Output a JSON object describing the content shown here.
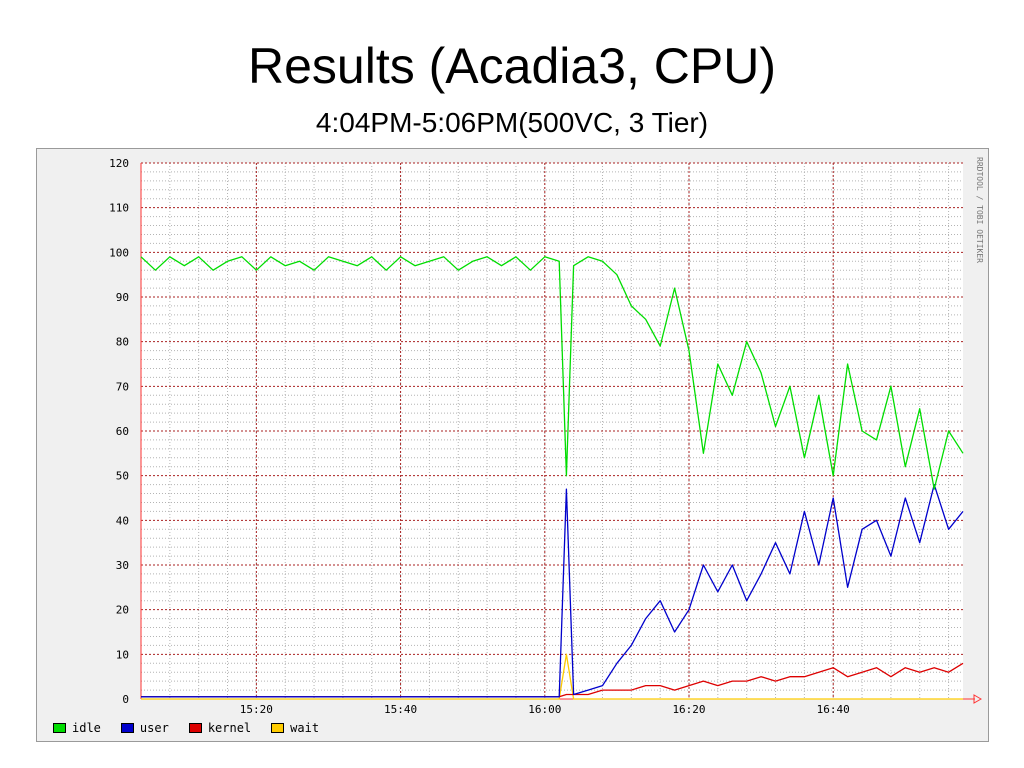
{
  "slide": {
    "title": "Results (Acadia3, CPU)",
    "subtitle": "4:04PM-5:06PM(500VC, 3 Tier)"
  },
  "watermark": "RRDTOOL / TOBI OETIKER",
  "colors": {
    "idle": "#00dd00",
    "user": "#0000cc",
    "kernel": "#dd0000",
    "wait": "#ffcc00",
    "major_grid": "#aa2222",
    "minor_grid": "#b4b4b4",
    "background": "#f0f0f0"
  },
  "chart_data": {
    "type": "line",
    "title": "",
    "xlabel": "",
    "ylabel": "",
    "x": [
      "15:04",
      "15:06",
      "15:08",
      "15:10",
      "15:12",
      "15:14",
      "15:16",
      "15:18",
      "15:20",
      "15:22",
      "15:24",
      "15:26",
      "15:28",
      "15:30",
      "15:32",
      "15:34",
      "15:36",
      "15:38",
      "15:40",
      "15:42",
      "15:44",
      "15:46",
      "15:48",
      "15:50",
      "15:52",
      "15:54",
      "15:56",
      "15:58",
      "16:00",
      "16:02",
      "16:03",
      "16:04",
      "16:06",
      "16:08",
      "16:10",
      "16:12",
      "16:14",
      "16:16",
      "16:18",
      "16:20",
      "16:22",
      "16:24",
      "16:26",
      "16:28",
      "16:30",
      "16:32",
      "16:34",
      "16:36",
      "16:38",
      "16:40",
      "16:42",
      "16:44",
      "16:46",
      "16:48",
      "16:50",
      "16:52",
      "16:54",
      "16:56",
      "16:58"
    ],
    "x_ticks": [
      "15:20",
      "15:40",
      "16:00",
      "16:20",
      "16:40"
    ],
    "ylim": [
      0,
      120
    ],
    "y_ticks": [
      0,
      10,
      20,
      30,
      40,
      50,
      60,
      70,
      80,
      90,
      100,
      110,
      120
    ],
    "grid": true,
    "legend_position": "bottom-left",
    "series": [
      {
        "name": "idle",
        "values": [
          99,
          96,
          99,
          97,
          99,
          96,
          98,
          99,
          96,
          99,
          97,
          98,
          96,
          99,
          98,
          97,
          99,
          96,
          99,
          97,
          98,
          99,
          96,
          98,
          99,
          97,
          99,
          96,
          99,
          98,
          50,
          97,
          99,
          98,
          95,
          88,
          85,
          79,
          92,
          78,
          55,
          75,
          68,
          80,
          73,
          61,
          70,
          54,
          68,
          50,
          75,
          60,
          58,
          70,
          52,
          65,
          47,
          60,
          55
        ]
      },
      {
        "name": "user",
        "values": [
          0.5,
          0.5,
          0.5,
          0.5,
          0.5,
          0.5,
          0.5,
          0.5,
          0.5,
          0.5,
          0.5,
          0.5,
          0.5,
          0.5,
          0.5,
          0.5,
          0.5,
          0.5,
          0.5,
          0.5,
          0.5,
          0.5,
          0.5,
          0.5,
          0.5,
          0.5,
          0.5,
          0.5,
          0.5,
          0.5,
          47,
          1,
          2,
          3,
          8,
          12,
          18,
          22,
          15,
          20,
          30,
          24,
          30,
          22,
          28,
          35,
          28,
          42,
          30,
          45,
          25,
          38,
          40,
          32,
          45,
          35,
          48,
          38,
          42
        ]
      },
      {
        "name": "kernel",
        "values": [
          0.5,
          0.5,
          0.5,
          0.5,
          0.5,
          0.5,
          0.5,
          0.5,
          0.5,
          0.5,
          0.5,
          0.5,
          0.5,
          0.5,
          0.5,
          0.5,
          0.5,
          0.5,
          0.5,
          0.5,
          0.5,
          0.5,
          0.5,
          0.5,
          0.5,
          0.5,
          0.5,
          0.5,
          0.5,
          0.5,
          1,
          1,
          1,
          2,
          2,
          2,
          3,
          3,
          2,
          3,
          4,
          3,
          4,
          4,
          5,
          4,
          5,
          5,
          6,
          7,
          5,
          6,
          7,
          5,
          7,
          6,
          7,
          6,
          8
        ]
      },
      {
        "name": "wait",
        "values": [
          0,
          0,
          0,
          0,
          0,
          0,
          0,
          0,
          0,
          0,
          0,
          0,
          0,
          0,
          0,
          0,
          0,
          0,
          0,
          0,
          0,
          0,
          0,
          0,
          0,
          0,
          0,
          0,
          0,
          0,
          10,
          0,
          0,
          0,
          0,
          0,
          0,
          0,
          0,
          0,
          0,
          0,
          0,
          0,
          0,
          0,
          0,
          0,
          0,
          0,
          0,
          0,
          0,
          0,
          0,
          0,
          0,
          0,
          0
        ]
      }
    ]
  }
}
